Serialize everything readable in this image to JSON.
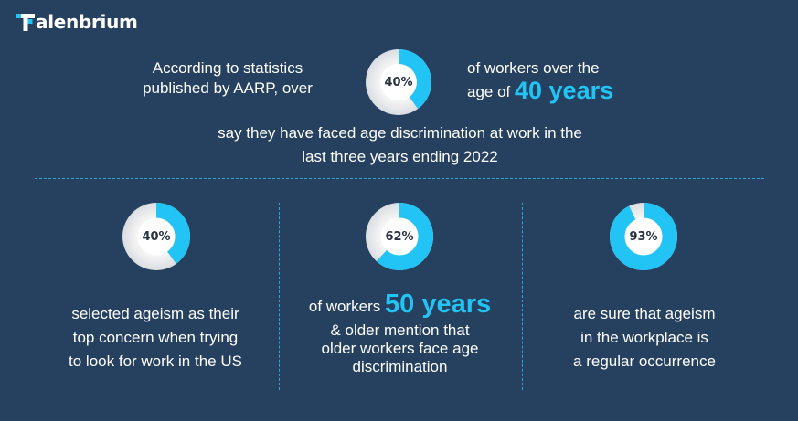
{
  "brand": {
    "name": "Talenbrium",
    "text_rest": "alenbrium",
    "accent_color": "#21c4f4",
    "background_color": "#26405f"
  },
  "intro": {
    "left_line1": "According to statistics",
    "left_line2": "published by AARP, over",
    "right_line1": "of workers over the",
    "right_prefix": "age of ",
    "right_highlight": "40 years",
    "bottom_line1": "say they have faced age discrimination at work in the",
    "bottom_line2": "last three years ending 2022"
  },
  "stats": [
    {
      "percent_label": "40%",
      "value": 40,
      "lines": [
        "selected ageism as their",
        "top concern when trying",
        "to look for work in the US"
      ]
    },
    {
      "percent_label": "62%",
      "value": 62,
      "prefix": "of workers ",
      "highlight": "50 years",
      "lines": [
        "& older mention that",
        "older workers face age",
        "discrimination"
      ]
    },
    {
      "percent_label": "93%",
      "value": 93,
      "lines": [
        "are sure that ageism",
        "in the workplace is",
        "a regular occurrence"
      ]
    }
  ],
  "top_donut": {
    "percent_label": "40%",
    "value": 40
  }
}
